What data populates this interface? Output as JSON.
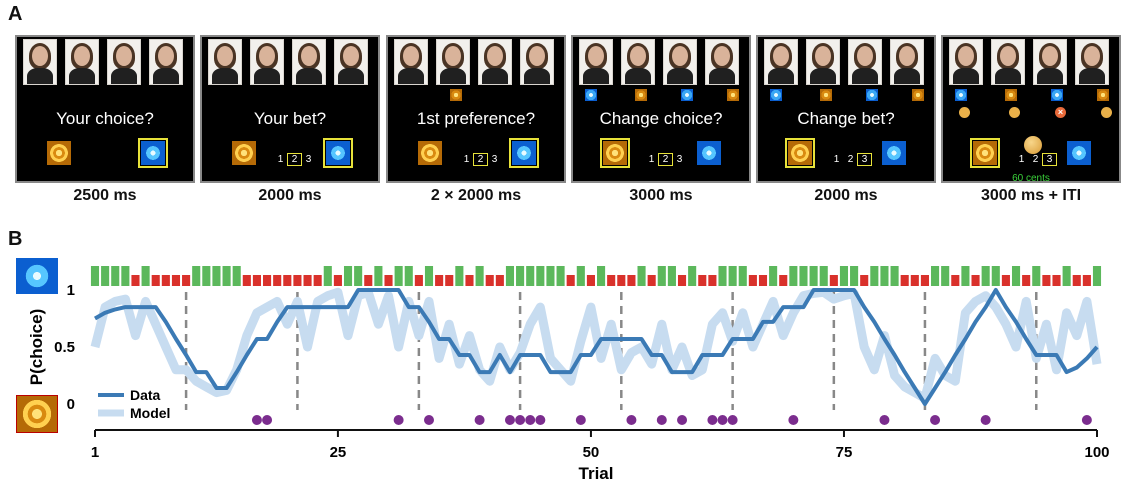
{
  "panelA": {
    "letter": "A",
    "screens": [
      {
        "prompt": "Your choice?",
        "caption": "2500 ms"
      },
      {
        "prompt": "Your bet?",
        "caption": "2000 ms"
      },
      {
        "prompt": "1st preference?",
        "caption": "2 × 2000 ms"
      },
      {
        "prompt": "Change choice?",
        "caption": "3000 ms"
      },
      {
        "prompt": "Change bet?",
        "caption": "2000 ms"
      },
      {
        "prompt": "",
        "caption": "3000 ms + ITI",
        "feedback": "60 cents"
      }
    ],
    "bet_options": [
      "1",
      "2",
      "3"
    ],
    "icons": {
      "option_top": "frost-tile-icon",
      "option_bottom": "spiral-tile-icon"
    }
  },
  "panelB": {
    "letter": "B",
    "colors": {
      "data": "#3b7ab5",
      "model": "#c7dcf0",
      "win": "#5cb85c",
      "loss": "#d9312b",
      "marker": "#7b2d8e",
      "dash": "#888888"
    },
    "chart_data": {
      "type": "line",
      "xlabel": "Trial",
      "ylabel": "P(choice)",
      "xlim": [
        1,
        100
      ],
      "ylim": [
        0,
        1
      ],
      "xticks": [
        "1",
        "25",
        "50",
        "75",
        "100"
      ],
      "yticks": [
        "0",
        "0.5",
        "1"
      ],
      "legend": {
        "placement": "bottom-left",
        "entries": [
          "Data",
          "Model"
        ]
      },
      "outcomes": [
        1,
        1,
        1,
        1,
        0,
        1,
        0,
        0,
        0,
        0,
        1,
        1,
        1,
        1,
        1,
        0,
        0,
        0,
        0,
        0,
        0,
        0,
        0,
        1,
        0,
        1,
        1,
        0,
        1,
        0,
        1,
        1,
        0,
        1,
        0,
        0,
        1,
        0,
        1,
        0,
        0,
        1,
        1,
        1,
        1,
        1,
        1,
        0,
        1,
        0,
        1,
        0,
        0,
        0,
        1,
        0,
        1,
        1,
        0,
        1,
        0,
        0,
        1,
        1,
        1,
        0,
        0,
        1,
        0,
        1,
        1,
        1,
        1,
        0,
        1,
        1,
        0,
        1,
        1,
        1,
        0,
        0,
        0,
        1,
        1,
        0,
        1,
        0,
        1,
        1,
        0,
        1,
        0,
        1,
        0,
        0,
        1,
        0,
        0,
        1
      ],
      "reversals": [
        10,
        21,
        33,
        43,
        53,
        64,
        74,
        83,
        94
      ],
      "switch_trials": [
        17,
        18,
        31,
        34,
        39,
        42,
        43,
        44,
        45,
        49,
        54,
        57,
        59,
        62,
        63,
        64,
        70,
        79,
        84,
        89,
        99
      ],
      "series": [
        {
          "name": "Data",
          "x": [
            1,
            2,
            3,
            4,
            5,
            6,
            7,
            8,
            9,
            10,
            11,
            12,
            13,
            14,
            15,
            16,
            17,
            18,
            19,
            20,
            21,
            22,
            23,
            24,
            25,
            26,
            27,
            28,
            29,
            30,
            31,
            32,
            33,
            34,
            35,
            36,
            37,
            38,
            39,
            40,
            41,
            42,
            43,
            44,
            45,
            46,
            47,
            48,
            49,
            50,
            51,
            52,
            53,
            54,
            55,
            56,
            57,
            58,
            59,
            60,
            61,
            62,
            63,
            64,
            65,
            66,
            67,
            68,
            69,
            70,
            71,
            72,
            73,
            74,
            75,
            76,
            77,
            78,
            79,
            80,
            81,
            82,
            83,
            84,
            85,
            86,
            87,
            88,
            89,
            90,
            91,
            92,
            93,
            94,
            95,
            96,
            97,
            98,
            99,
            100
          ],
          "y": [
            0.75,
            0.8,
            0.83,
            0.85,
            0.85,
            0.85,
            0.85,
            0.72,
            0.57,
            0.43,
            0.28,
            0.28,
            0.14,
            0.14,
            0.28,
            0.43,
            0.57,
            0.57,
            0.72,
            0.85,
            0.85,
            0.85,
            0.85,
            0.85,
            0.85,
            0.85,
            1,
            1,
            1,
            1,
            1,
            0.85,
            0.85,
            0.72,
            0.57,
            0.57,
            0.43,
            0.43,
            0.28,
            0.28,
            0.43,
            0.28,
            0.43,
            0.43,
            0.43,
            0.28,
            0.28,
            0.28,
            0.43,
            0.43,
            0.57,
            0.57,
            0.57,
            0.57,
            0.57,
            0.43,
            0.43,
            0.28,
            0.28,
            0.28,
            0.43,
            0.43,
            0.43,
            0.57,
            0.57,
            0.57,
            0.72,
            0.72,
            0.85,
            0.85,
            0.85,
            1,
            1,
            1,
            1,
            1,
            0.85,
            0.72,
            0.57,
            0.43,
            0.28,
            0.14,
            0,
            0.14,
            0.28,
            0.43,
            0.57,
            0.72,
            0.85,
            1,
            0.85,
            0.72,
            0.57,
            0.43,
            0.43,
            0.43,
            0.28,
            0.32,
            0.4,
            0.5
          ]
        },
        {
          "name": "Model",
          "x": [
            1,
            2,
            3,
            4,
            5,
            6,
            7,
            8,
            9,
            10,
            11,
            12,
            13,
            14,
            15,
            16,
            17,
            18,
            19,
            20,
            21,
            22,
            23,
            24,
            25,
            26,
            27,
            28,
            29,
            30,
            31,
            32,
            33,
            34,
            35,
            36,
            37,
            38,
            39,
            40,
            41,
            42,
            43,
            44,
            45,
            46,
            47,
            48,
            49,
            50,
            51,
            52,
            53,
            54,
            55,
            56,
            57,
            58,
            59,
            60,
            61,
            62,
            63,
            64,
            65,
            66,
            67,
            68,
            69,
            70,
            71,
            72,
            73,
            74,
            75,
            76,
            77,
            78,
            79,
            80,
            81,
            82,
            83,
            84,
            85,
            86,
            87,
            88,
            89,
            90,
            91,
            92,
            93,
            94,
            95,
            96,
            97,
            98,
            99,
            100
          ],
          "y": [
            0.5,
            0.85,
            0.9,
            0.92,
            0.6,
            0.9,
            0.7,
            0.5,
            0.3,
            0.3,
            0.2,
            0.15,
            0.1,
            0.12,
            0.3,
            0.6,
            0.8,
            0.85,
            0.9,
            0.7,
            0.9,
            0.5,
            0.9,
            0.95,
            0.98,
            0.6,
            0.95,
            0.98,
            0.7,
            0.95,
            0.5,
            0.9,
            0.6,
            0.9,
            0.4,
            0.7,
            0.35,
            0.6,
            0.3,
            0.2,
            0.5,
            0.3,
            0.45,
            0.7,
            0.85,
            0.4,
            0.3,
            0.2,
            0.55,
            0.85,
            0.4,
            0.7,
            0.3,
            0.45,
            0.5,
            0.35,
            0.7,
            0.3,
            0.5,
            0.25,
            0.3,
            0.7,
            0.8,
            0.55,
            0.8,
            0.5,
            0.7,
            0.9,
            0.6,
            0.8,
            0.95,
            0.97,
            0.98,
            0.92,
            0.95,
            0.97,
            0.5,
            0.3,
            0.6,
            0.25,
            0.15,
            0.1,
            0.05,
            0.4,
            0.25,
            0.2,
            0.8,
            0.9,
            0.95,
            0.85,
            0.7,
            0.5,
            0.9,
            0.4,
            0.7,
            0.3,
            0.8,
            0.6,
            0.9,
            0.35
          ]
        }
      ]
    }
  }
}
